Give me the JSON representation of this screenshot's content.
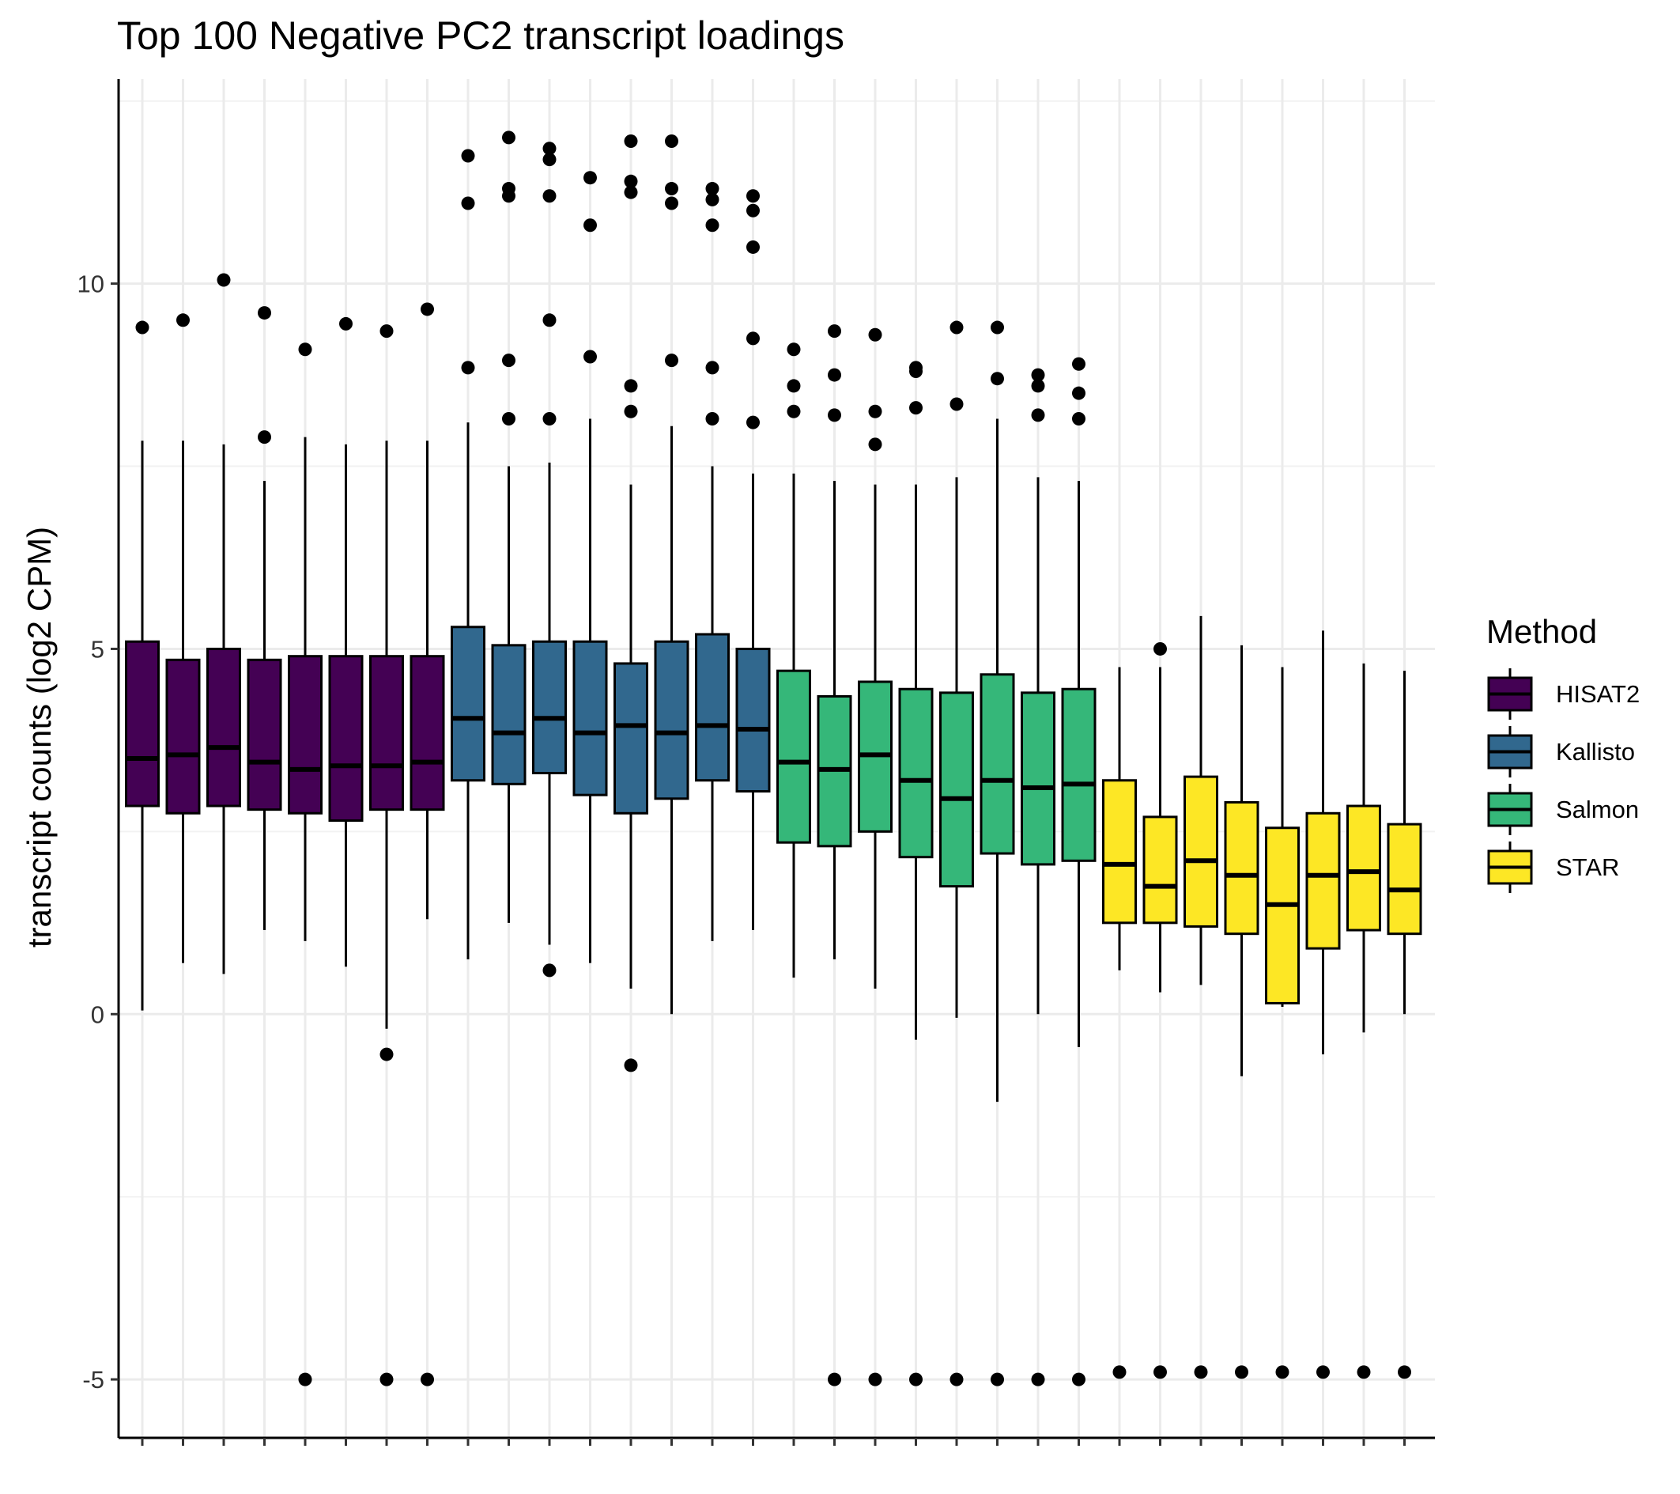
{
  "chart_data": {
    "type": "boxplot",
    "title": "Top 100 Negative PC2 transcript loadings",
    "xlabel": "",
    "ylabel": "transcript counts (log2 CPM)",
    "ylim": [
      -5.8,
      12.8
    ],
    "yticks": [
      -5,
      0,
      5,
      10
    ],
    "ytick_labels": [
      "-5",
      "0",
      "5",
      "10"
    ],
    "grid": true,
    "legend": {
      "title": "Method",
      "position": "right"
    },
    "colors": {
      "HISAT2": "#440154",
      "Kallisto": "#31688E",
      "Salmon": "#35B779",
      "STAR": "#FDE725"
    },
    "groups": [
      {
        "method": "HISAT2",
        "boxes": [
          {
            "lower_whisker": 0.05,
            "q1": 2.85,
            "median": 3.5,
            "q3": 5.1,
            "upper_whisker": 7.85,
            "outliers": [
              9.4
            ]
          },
          {
            "lower_whisker": 0.7,
            "q1": 2.75,
            "median": 3.55,
            "q3": 4.85,
            "upper_whisker": 7.85,
            "outliers": [
              9.5
            ]
          },
          {
            "lower_whisker": 0.55,
            "q1": 2.85,
            "median": 3.65,
            "q3": 5.0,
            "upper_whisker": 7.8,
            "outliers": [
              10.05
            ]
          },
          {
            "lower_whisker": 1.15,
            "q1": 2.8,
            "median": 3.45,
            "q3": 4.85,
            "upper_whisker": 7.3,
            "outliers": [
              7.9,
              9.6
            ]
          },
          {
            "lower_whisker": 1.0,
            "q1": 2.75,
            "median": 3.35,
            "q3": 4.9,
            "upper_whisker": 7.9,
            "outliers": [
              9.1,
              -5.0
            ]
          },
          {
            "lower_whisker": 0.65,
            "q1": 2.65,
            "median": 3.4,
            "q3": 4.9,
            "upper_whisker": 7.8,
            "outliers": [
              9.45
            ]
          },
          {
            "lower_whisker": -0.2,
            "q1": 2.8,
            "median": 3.4,
            "q3": 4.9,
            "upper_whisker": 7.85,
            "outliers": [
              9.35,
              -0.55,
              -5.0
            ]
          },
          {
            "lower_whisker": 1.3,
            "q1": 2.8,
            "median": 3.45,
            "q3": 4.9,
            "upper_whisker": 7.85,
            "outliers": [
              9.65,
              -5.0
            ]
          }
        ]
      },
      {
        "method": "Kallisto",
        "boxes": [
          {
            "lower_whisker": 0.75,
            "q1": 3.2,
            "median": 4.05,
            "q3": 5.3,
            "upper_whisker": 8.1,
            "outliers": [
              8.85,
              11.1,
              11.75
            ]
          },
          {
            "lower_whisker": 1.25,
            "q1": 3.15,
            "median": 3.85,
            "q3": 5.05,
            "upper_whisker": 7.5,
            "outliers": [
              8.15,
              8.95,
              11.3,
              11.2,
              12.0
            ]
          },
          {
            "lower_whisker": 0.95,
            "q1": 3.3,
            "median": 4.05,
            "q3": 5.1,
            "upper_whisker": 7.55,
            "outliers": [
              8.15,
              9.5,
              11.2,
              11.7,
              11.85,
              0.6
            ]
          },
          {
            "lower_whisker": 0.7,
            "q1": 3.0,
            "median": 3.85,
            "q3": 5.1,
            "upper_whisker": 8.15,
            "outliers": [
              9.0,
              10.8,
              11.45
            ]
          },
          {
            "lower_whisker": 0.35,
            "q1": 2.75,
            "median": 3.95,
            "q3": 4.8,
            "upper_whisker": 7.25,
            "outliers": [
              8.25,
              8.6,
              11.25,
              11.4,
              11.95,
              -0.7
            ]
          },
          {
            "lower_whisker": 0.0,
            "q1": 2.95,
            "median": 3.85,
            "q3": 5.1,
            "upper_whisker": 8.05,
            "outliers": [
              8.95,
              11.1,
              11.3,
              11.95
            ]
          },
          {
            "lower_whisker": 1.0,
            "q1": 3.2,
            "median": 3.95,
            "q3": 5.2,
            "upper_whisker": 7.5,
            "outliers": [
              8.15,
              8.85,
              10.8,
              11.15,
              11.3
            ]
          },
          {
            "lower_whisker": 1.15,
            "q1": 3.05,
            "median": 3.9,
            "q3": 5.0,
            "upper_whisker": 7.4,
            "outliers": [
              8.1,
              9.25,
              10.5,
              11.0,
              11.2
            ]
          }
        ]
      },
      {
        "method": "Salmon",
        "boxes": [
          {
            "lower_whisker": 0.5,
            "q1": 2.35,
            "median": 3.45,
            "q3": 4.7,
            "upper_whisker": 7.4,
            "outliers": [
              8.25,
              8.6,
              9.1
            ]
          },
          {
            "lower_whisker": 0.75,
            "q1": 2.3,
            "median": 3.35,
            "q3": 4.35,
            "upper_whisker": 7.3,
            "outliers": [
              8.2,
              8.75,
              9.35,
              -5.0
            ]
          },
          {
            "lower_whisker": 0.35,
            "q1": 2.5,
            "median": 3.55,
            "q3": 4.55,
            "upper_whisker": 7.25,
            "outliers": [
              7.8,
              8.25,
              9.3,
              -5.0
            ]
          },
          {
            "lower_whisker": -0.35,
            "q1": 2.15,
            "median": 3.2,
            "q3": 4.45,
            "upper_whisker": 7.25,
            "outliers": [
              8.3,
              8.8,
              8.85,
              -5.0
            ]
          },
          {
            "lower_whisker": -0.05,
            "q1": 1.75,
            "median": 2.95,
            "q3": 4.4,
            "upper_whisker": 7.35,
            "outliers": [
              8.35,
              9.4,
              -5.0
            ]
          },
          {
            "lower_whisker": -1.2,
            "q1": 2.2,
            "median": 3.2,
            "q3": 4.65,
            "upper_whisker": 8.15,
            "outliers": [
              8.7,
              9.4,
              -5.0
            ]
          },
          {
            "lower_whisker": 0.0,
            "q1": 2.05,
            "median": 3.1,
            "q3": 4.4,
            "upper_whisker": 7.35,
            "outliers": [
              8.2,
              8.6,
              8.75,
              -5.0
            ]
          },
          {
            "lower_whisker": -0.45,
            "q1": 2.1,
            "median": 3.15,
            "q3": 4.45,
            "upper_whisker": 7.3,
            "outliers": [
              8.15,
              8.5,
              8.9,
              -5.0
            ]
          }
        ]
      },
      {
        "method": "STAR",
        "boxes": [
          {
            "lower_whisker": 0.6,
            "q1": 1.25,
            "median": 2.05,
            "q3": 3.2,
            "upper_whisker": 4.75,
            "outliers": [
              -4.9
            ]
          },
          {
            "lower_whisker": 0.3,
            "q1": 1.25,
            "median": 1.75,
            "q3": 2.7,
            "upper_whisker": 4.75,
            "outliers": [
              5.0,
              -4.9
            ]
          },
          {
            "lower_whisker": 0.4,
            "q1": 1.2,
            "median": 2.1,
            "q3": 3.25,
            "upper_whisker": 5.45,
            "outliers": [
              -4.9
            ]
          },
          {
            "lower_whisker": -0.85,
            "q1": 1.1,
            "median": 1.9,
            "q3": 2.9,
            "upper_whisker": 5.05,
            "outliers": [
              -4.9
            ]
          },
          {
            "lower_whisker": 0.1,
            "q1": 0.15,
            "median": 1.5,
            "q3": 2.55,
            "upper_whisker": 4.75,
            "outliers": [
              -4.9
            ]
          },
          {
            "lower_whisker": -0.55,
            "q1": 0.9,
            "median": 1.9,
            "q3": 2.75,
            "upper_whisker": 5.25,
            "outliers": [
              -4.9
            ]
          },
          {
            "lower_whisker": -0.25,
            "q1": 1.15,
            "median": 1.95,
            "q3": 2.85,
            "upper_whisker": 4.8,
            "outliers": [
              -4.9
            ]
          },
          {
            "lower_whisker": 0.0,
            "q1": 1.1,
            "median": 1.7,
            "q3": 2.6,
            "upper_whisker": 4.7,
            "outliers": [
              -4.9
            ]
          }
        ]
      }
    ]
  }
}
